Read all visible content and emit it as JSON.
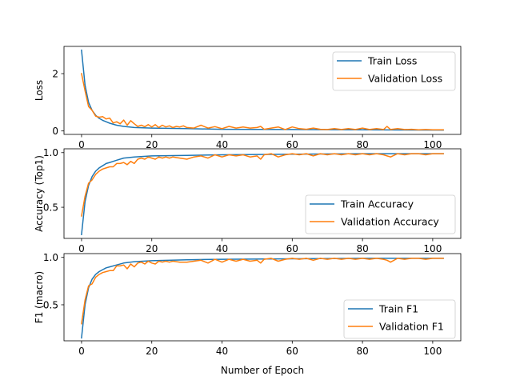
{
  "colors": {
    "train": "#1f77b4",
    "validation": "#ff7f0e"
  },
  "chart_data": [
    {
      "type": "line",
      "ylabel": "Loss",
      "xlabel": "",
      "xlim": [
        -5,
        108
      ],
      "ylim": [
        -0.12,
        2.95
      ],
      "xticks": [
        0,
        20,
        40,
        60,
        80,
        100
      ],
      "yticks": [
        0,
        2
      ],
      "grid": false,
      "legend_position": "top-right",
      "series": [
        {
          "name": "Train Loss",
          "x": [
            0,
            1,
            2,
            3,
            4,
            5,
            6,
            7,
            8,
            10,
            12,
            15,
            20,
            30,
            40,
            60,
            80,
            103
          ],
          "y": [
            2.82,
            1.6,
            1.0,
            0.72,
            0.55,
            0.44,
            0.37,
            0.32,
            0.27,
            0.2,
            0.16,
            0.12,
            0.1,
            0.08,
            0.06,
            0.05,
            0.04,
            0.03
          ]
        },
        {
          "name": "Validation Loss",
          "x": [
            0,
            1,
            2,
            3,
            4,
            5,
            6,
            7,
            8,
            9,
            10,
            11,
            12,
            13,
            14,
            15,
            16,
            17,
            18,
            19,
            20,
            21,
            22,
            23,
            24,
            25,
            26,
            27,
            28,
            29,
            30,
            32,
            34,
            36,
            38,
            40,
            42,
            44,
            46,
            48,
            50,
            51,
            52,
            54,
            56,
            58,
            60,
            62,
            64,
            66,
            68,
            70,
            72,
            74,
            76,
            78,
            80,
            82,
            84,
            86,
            87,
            88,
            90,
            92,
            94,
            96,
            98,
            100,
            103
          ],
          "y": [
            2.0,
            1.4,
            0.85,
            0.72,
            0.52,
            0.48,
            0.5,
            0.42,
            0.45,
            0.28,
            0.32,
            0.25,
            0.38,
            0.2,
            0.36,
            0.25,
            0.16,
            0.2,
            0.15,
            0.22,
            0.14,
            0.22,
            0.12,
            0.2,
            0.14,
            0.18,
            0.12,
            0.16,
            0.14,
            0.18,
            0.12,
            0.1,
            0.2,
            0.1,
            0.15,
            0.08,
            0.16,
            0.1,
            0.14,
            0.1,
            0.12,
            0.16,
            0.06,
            0.1,
            0.14,
            0.05,
            0.14,
            0.08,
            0.06,
            0.1,
            0.06,
            0.05,
            0.08,
            0.05,
            0.08,
            0.05,
            0.1,
            0.05,
            0.08,
            0.05,
            0.16,
            0.05,
            0.08,
            0.05,
            0.06,
            0.04,
            0.05,
            0.04,
            0.04
          ]
        }
      ]
    },
    {
      "type": "line",
      "ylabel": "Accuracy (Top1)",
      "xlabel": "",
      "xlim": [
        -5,
        108
      ],
      "ylim": [
        0.215,
        1.035
      ],
      "xticks": [
        0,
        20,
        40,
        60,
        80,
        100
      ],
      "yticks": [
        0.5,
        1.0
      ],
      "grid": false,
      "legend_position": "bottom-right",
      "series": [
        {
          "name": "Train Accuracy",
          "x": [
            0,
            1,
            2,
            3,
            4,
            5,
            6,
            7,
            8,
            10,
            12,
            15,
            20,
            30,
            40,
            60,
            80,
            103
          ],
          "y": [
            0.25,
            0.55,
            0.7,
            0.78,
            0.83,
            0.86,
            0.88,
            0.9,
            0.91,
            0.93,
            0.95,
            0.96,
            0.97,
            0.975,
            0.98,
            0.985,
            0.99,
            0.99
          ]
        },
        {
          "name": "Validation Accuracy",
          "x": [
            0,
            1,
            2,
            3,
            4,
            5,
            6,
            7,
            8,
            9,
            10,
            11,
            12,
            13,
            14,
            15,
            16,
            17,
            18,
            19,
            20,
            21,
            22,
            23,
            24,
            25,
            26,
            28,
            30,
            32,
            34,
            36,
            38,
            40,
            42,
            44,
            46,
            48,
            50,
            51,
            52,
            54,
            56,
            58,
            60,
            62,
            64,
            66,
            68,
            70,
            72,
            74,
            76,
            78,
            80,
            82,
            84,
            86,
            87,
            88,
            90,
            92,
            94,
            96,
            98,
            100,
            103
          ],
          "y": [
            0.42,
            0.6,
            0.72,
            0.75,
            0.8,
            0.83,
            0.85,
            0.86,
            0.87,
            0.87,
            0.9,
            0.9,
            0.91,
            0.89,
            0.92,
            0.9,
            0.94,
            0.95,
            0.94,
            0.96,
            0.95,
            0.94,
            0.96,
            0.95,
            0.96,
            0.95,
            0.96,
            0.95,
            0.94,
            0.96,
            0.97,
            0.95,
            0.98,
            0.96,
            0.98,
            0.97,
            0.98,
            0.96,
            0.97,
            0.94,
            0.98,
            0.99,
            0.96,
            0.98,
            0.99,
            0.98,
            0.99,
            0.97,
            0.99,
            0.98,
            0.99,
            0.98,
            0.99,
            0.98,
            0.99,
            0.98,
            0.99,
            0.98,
            0.97,
            0.96,
            0.99,
            0.98,
            0.99,
            0.99,
            0.98,
            0.99,
            0.99
          ]
        }
      ]
    },
    {
      "type": "line",
      "ylabel": "F1 (macro)",
      "xlabel": "Number of Epoch",
      "xlim": [
        -5,
        108
      ],
      "ylim": [
        0.12,
        1.04
      ],
      "xticks": [
        0,
        20,
        40,
        60,
        80,
        100
      ],
      "yticks": [
        0.5,
        1.0
      ],
      "grid": false,
      "legend_position": "bottom-right",
      "series": [
        {
          "name": "Train F1",
          "x": [
            0,
            1,
            2,
            3,
            4,
            5,
            6,
            7,
            8,
            10,
            12,
            15,
            20,
            30,
            40,
            60,
            80,
            103
          ],
          "y": [
            0.15,
            0.5,
            0.68,
            0.77,
            0.82,
            0.85,
            0.87,
            0.89,
            0.9,
            0.92,
            0.94,
            0.955,
            0.965,
            0.975,
            0.98,
            0.985,
            0.99,
            0.99
          ]
        },
        {
          "name": "Validation F1",
          "x": [
            0,
            1,
            2,
            3,
            4,
            5,
            6,
            7,
            8,
            9,
            10,
            11,
            12,
            13,
            14,
            15,
            16,
            17,
            18,
            19,
            20,
            21,
            22,
            23,
            24,
            25,
            26,
            28,
            30,
            32,
            34,
            36,
            38,
            40,
            42,
            44,
            46,
            48,
            50,
            51,
            52,
            54,
            56,
            58,
            60,
            62,
            64,
            66,
            68,
            70,
            72,
            74,
            76,
            78,
            80,
            82,
            84,
            86,
            87,
            88,
            90,
            92,
            94,
            96,
            98,
            100,
            103
          ],
          "y": [
            0.3,
            0.55,
            0.7,
            0.72,
            0.79,
            0.82,
            0.84,
            0.85,
            0.86,
            0.86,
            0.91,
            0.91,
            0.92,
            0.88,
            0.93,
            0.9,
            0.94,
            0.95,
            0.93,
            0.96,
            0.94,
            0.93,
            0.96,
            0.95,
            0.96,
            0.95,
            0.96,
            0.95,
            0.95,
            0.96,
            0.97,
            0.94,
            0.98,
            0.95,
            0.98,
            0.96,
            0.98,
            0.96,
            0.97,
            0.94,
            0.98,
            0.99,
            0.96,
            0.98,
            0.99,
            0.98,
            0.99,
            0.97,
            0.99,
            0.98,
            0.99,
            0.98,
            0.99,
            0.98,
            0.99,
            0.98,
            0.99,
            0.98,
            0.97,
            0.95,
            0.99,
            0.98,
            0.99,
            0.99,
            0.98,
            0.99,
            0.99
          ]
        }
      ]
    }
  ]
}
